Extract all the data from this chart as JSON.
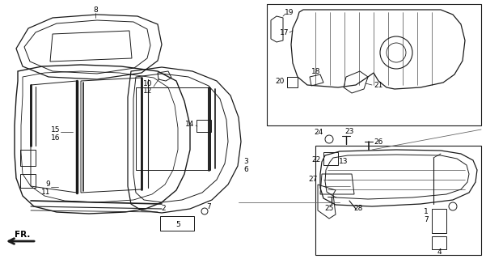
{
  "bg_color": "#ffffff",
  "line_color": "#1a1a1a",
  "label_color": "#000000",
  "font_size": 6.5,
  "fig_width": 6.01,
  "fig_height": 3.2,
  "dpi": 100
}
